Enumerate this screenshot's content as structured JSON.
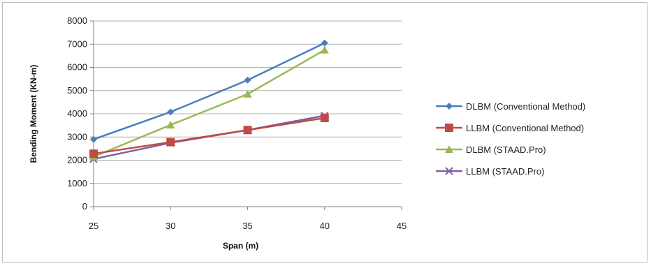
{
  "chart_data": {
    "type": "line",
    "title": "",
    "xlabel": "Span (m)",
    "ylabel": "Bending Moment (KN-m)",
    "x": [
      25,
      30,
      35,
      40
    ],
    "xlim": [
      25,
      45
    ],
    "x_ticks": [
      "25",
      "30",
      "35",
      "40",
      "45"
    ],
    "ylim": [
      0,
      8000
    ],
    "y_ticks": [
      "0",
      "1000",
      "2000",
      "3000",
      "4000",
      "5000",
      "6000",
      "7000",
      "8000"
    ],
    "grid": "horizontal",
    "legend_position": "right",
    "series": [
      {
        "name": "DLBM (Conventional Method)",
        "values": [
          2900,
          4080,
          5450,
          7050
        ],
        "color": "#4a7ebb",
        "marker": "diamond"
      },
      {
        "name": "LLBM (Conventional Method)",
        "values": [
          2280,
          2780,
          3300,
          3820
        ],
        "color": "#be4b48",
        "marker": "square"
      },
      {
        "name": "DLBM (STAAD.Pro)",
        "values": [
          2150,
          3520,
          4850,
          6750
        ],
        "color": "#98b954",
        "marker": "triangle"
      },
      {
        "name": "LLBM (STAAD.Pro)",
        "values": [
          2050,
          2750,
          3300,
          3920
        ],
        "color": "#7d60a0",
        "marker": "x"
      }
    ]
  }
}
